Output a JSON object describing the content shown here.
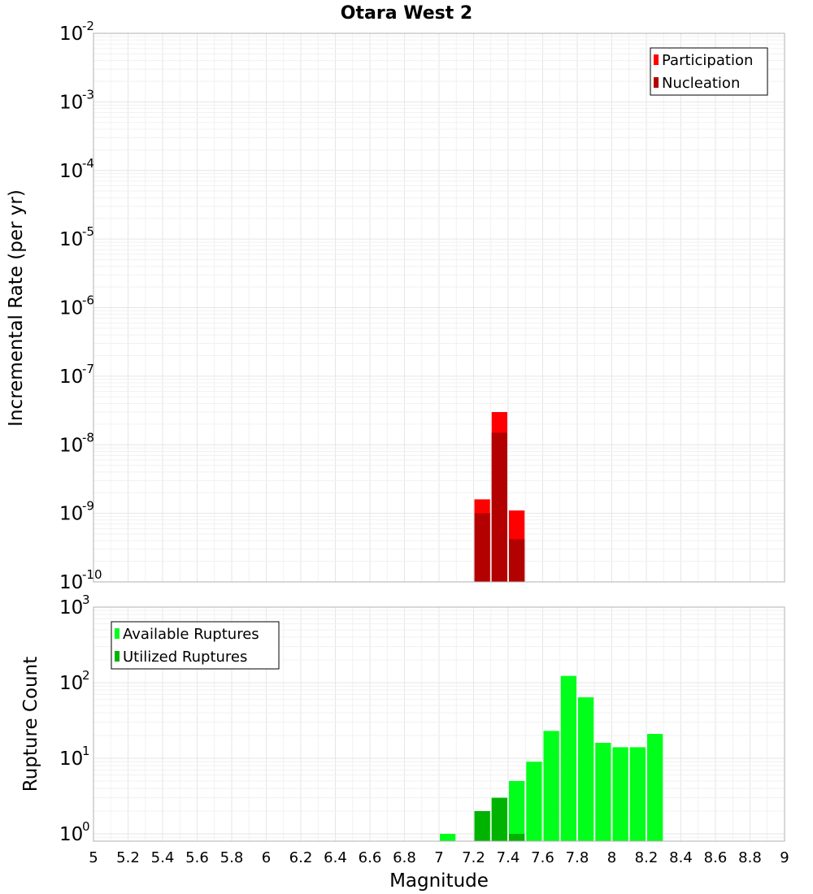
{
  "title": "Otara West 2",
  "xlabel": "Magnitude",
  "chart_data": [
    {
      "type": "bar",
      "ylabel": "Incremental Rate (per yr)",
      "yscale": "log",
      "ylim": [
        1e-10,
        0.01
      ],
      "xlim": [
        5,
        9
      ],
      "bar_width": 0.1,
      "legend_position": "top-right",
      "yticks": [
        {
          "base": "10",
          "exp": "-10"
        },
        {
          "base": "10",
          "exp": "-9"
        },
        {
          "base": "10",
          "exp": "-8"
        },
        {
          "base": "10",
          "exp": "-7"
        },
        {
          "base": "10",
          "exp": "-6"
        },
        {
          "base": "10",
          "exp": "-5"
        },
        {
          "base": "10",
          "exp": "-4"
        },
        {
          "base": "10",
          "exp": "-3"
        },
        {
          "base": "10",
          "exp": "-2"
        }
      ],
      "series": [
        {
          "name": "Participation",
          "color": "#ff0000",
          "x": [
            7.25,
            7.35,
            7.45
          ],
          "values": [
            1.6e-09,
            3e-08,
            1.1e-09
          ]
        },
        {
          "name": "Nucleation",
          "color": "#b30000",
          "x": [
            7.25,
            7.35,
            7.45
          ],
          "values": [
            1e-09,
            1.5e-08,
            4.2e-10
          ]
        }
      ]
    },
    {
      "type": "bar",
      "ylabel": "Rupture Count",
      "yscale": "log",
      "ylim": [
        0.8,
        1000
      ],
      "xlim": [
        5,
        9
      ],
      "bar_width": 0.1,
      "legend_position": "top-left",
      "yticks": [
        {
          "base": "10",
          "exp": "0"
        },
        {
          "base": "10",
          "exp": "1"
        },
        {
          "base": "10",
          "exp": "2"
        },
        {
          "base": "10",
          "exp": "3"
        }
      ],
      "series": [
        {
          "name": "Available Ruptures",
          "color": "#00ff1a",
          "x": [
            7.05,
            7.25,
            7.35,
            7.45,
            7.55,
            7.65,
            7.75,
            7.85,
            7.95,
            8.05,
            8.15,
            8.25
          ],
          "values": [
            1,
            2,
            3,
            5,
            9,
            23,
            123,
            64,
            16,
            14,
            14,
            21
          ]
        },
        {
          "name": "Utilized Ruptures",
          "color": "#00b300",
          "x": [
            7.25,
            7.35,
            7.45
          ],
          "values": [
            2,
            3,
            1
          ]
        }
      ]
    }
  ],
  "xticks": [
    "5",
    "5.2",
    "5.4",
    "5.6",
    "5.8",
    "6",
    "6.2",
    "6.4",
    "6.6",
    "6.8",
    "7",
    "7.2",
    "7.4",
    "7.6",
    "7.8",
    "8",
    "8.2",
    "8.4",
    "8.6",
    "8.8",
    "9"
  ]
}
